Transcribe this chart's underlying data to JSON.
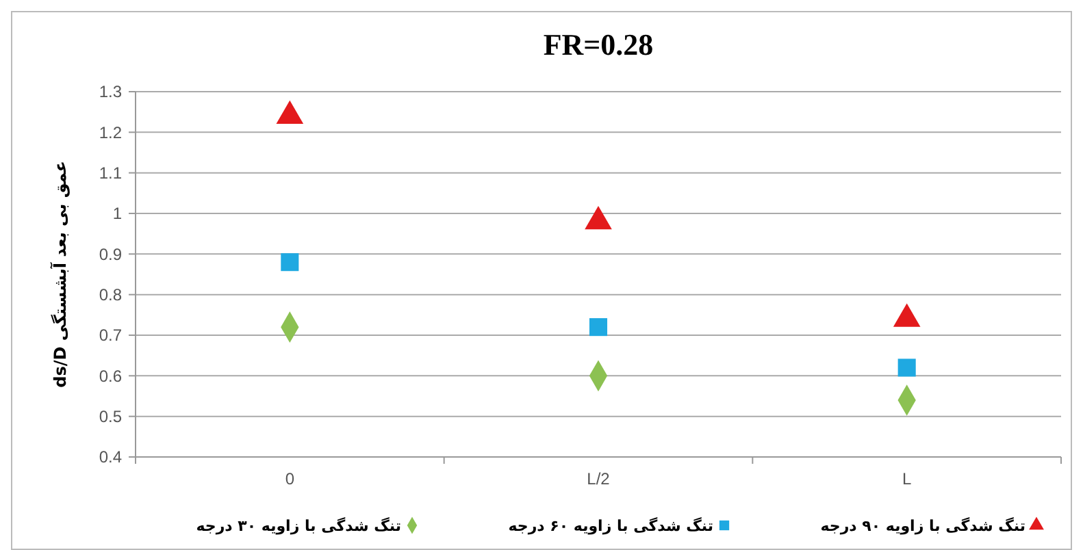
{
  "chart_data": {
    "type": "scatter",
    "title": "FR=0.28",
    "ylabel": "عمق بی بعد آبشستگی ds/D",
    "categories": [
      "0",
      "L/2",
      "L"
    ],
    "series": [
      {
        "name": "تنگ شدگی با زاویه ۳۰ درجه",
        "color": "#8cc152",
        "marker": "diamond",
        "values": [
          0.72,
          0.6,
          0.54
        ]
      },
      {
        "name": "تنگ شدگی با زاویه ۶۰ درجه",
        "color": "#1fa9e1",
        "marker": "square",
        "values": [
          0.88,
          0.72,
          0.62
        ]
      },
      {
        "name": "تنگ شدگی با زاویه ۹۰ درجه",
        "color": "#e31a1c",
        "marker": "triangle",
        "values": [
          1.24,
          0.98,
          0.74
        ]
      }
    ],
    "ylim": [
      0.4,
      1.3
    ],
    "yticks": [
      0.4,
      0.5,
      0.6,
      0.7,
      0.8,
      0.9,
      1,
      1.1,
      1.2,
      1.3
    ],
    "grid": "y",
    "legend": "bottom"
  }
}
